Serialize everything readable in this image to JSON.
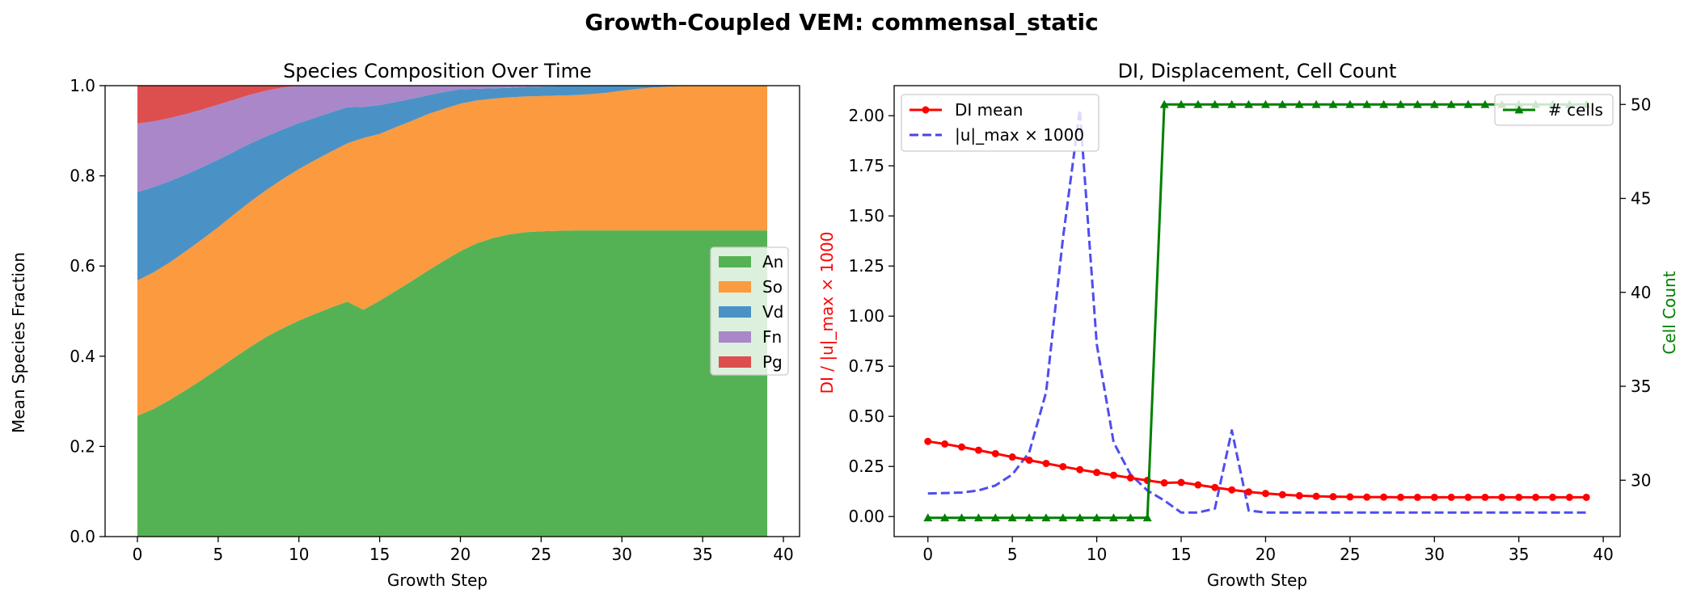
{
  "suptitle": "Growth-Coupled VEM: commensal_static",
  "chart_data": [
    {
      "type": "area",
      "title": "Species Composition Over Time",
      "xlabel": "Growth Step",
      "ylabel": "Mean Species Fraction",
      "xlim": [
        -2.0,
        41.0
      ],
      "ylim": [
        0,
        1
      ],
      "xticks": [
        0,
        5,
        10,
        15,
        20,
        25,
        30,
        35,
        40
      ],
      "yticks": [
        "0.0",
        "0.2",
        "0.4",
        "0.6",
        "0.8",
        "1.0"
      ],
      "legend_position": "center-right",
      "stacked": true,
      "x": [
        0,
        1,
        2,
        3,
        4,
        5,
        6,
        7,
        8,
        9,
        10,
        11,
        12,
        13,
        14,
        15,
        16,
        17,
        18,
        19,
        20,
        21,
        22,
        23,
        24,
        25,
        26,
        27,
        28,
        29,
        30,
        31,
        32,
        33,
        34,
        35,
        36,
        37,
        38,
        39
      ],
      "series": [
        {
          "name": "An",
          "color": "#55b254",
          "values": [
            0.268,
            0.283,
            0.303,
            0.325,
            0.348,
            0.372,
            0.397,
            0.421,
            0.443,
            0.462,
            0.479,
            0.494,
            0.508,
            0.521,
            0.503,
            0.523,
            0.545,
            0.567,
            0.59,
            0.612,
            0.633,
            0.65,
            0.662,
            0.67,
            0.675,
            0.677,
            0.678,
            0.679,
            0.679,
            0.679,
            0.679,
            0.679,
            0.679,
            0.679,
            0.679,
            0.679,
            0.679,
            0.679,
            0.679,
            0.679
          ]
        },
        {
          "name": "So",
          "color": "#fb9a3f",
          "values": [
            0.3,
            0.303,
            0.305,
            0.308,
            0.311,
            0.314,
            0.318,
            0.322,
            0.326,
            0.331,
            0.336,
            0.341,
            0.346,
            0.351,
            0.381,
            0.37,
            0.363,
            0.355,
            0.347,
            0.337,
            0.327,
            0.317,
            0.309,
            0.304,
            0.301,
            0.3,
            0.3,
            0.3,
            0.302,
            0.305,
            0.31,
            0.314,
            0.317,
            0.319,
            0.32,
            0.321,
            0.321,
            0.321,
            0.321,
            0.321
          ]
        },
        {
          "name": "Vd",
          "color": "#4a92c6",
          "values": [
            0.196,
            0.189,
            0.18,
            0.17,
            0.16,
            0.15,
            0.139,
            0.129,
            0.119,
            0.11,
            0.102,
            0.094,
            0.087,
            0.08,
            0.069,
            0.064,
            0.056,
            0.049,
            0.042,
            0.037,
            0.032,
            0.026,
            0.023,
            0.021,
            0.021,
            0.021,
            0.021,
            0.021,
            0.019,
            0.016,
            0.011,
            0.007,
            0.004,
            0.002,
            0.001,
            0.0,
            0.0,
            0.0,
            0.0,
            0.0
          ]
        },
        {
          "name": "Fn",
          "color": "#a987c8",
          "values": [
            0.152,
            0.146,
            0.14,
            0.134,
            0.128,
            0.122,
            0.115,
            0.108,
            0.101,
            0.093,
            0.083,
            0.072,
            0.059,
            0.048,
            0.047,
            0.043,
            0.036,
            0.029,
            0.021,
            0.014,
            0.008,
            0.007,
            0.006,
            0.005,
            0.003,
            0.002,
            0.001,
            0.0,
            0.0,
            0.0,
            0.0,
            0.0,
            0.0,
            0.0,
            0.0,
            0.0,
            0.0,
            0.0,
            0.0,
            0.0
          ]
        },
        {
          "name": "Pg",
          "color": "#dd4e4f",
          "values": [
            0.084,
            0.079,
            0.072,
            0.063,
            0.053,
            0.042,
            0.031,
            0.02,
            0.011,
            0.004,
            0.0,
            0.0,
            0.0,
            0.0,
            0.0,
            0.0,
            0.0,
            0.0,
            0.0,
            0.0,
            0.0,
            0.0,
            0.0,
            0.0,
            0.0,
            0.0,
            0.0,
            0.0,
            0.0,
            0.0,
            0.0,
            0.0,
            0.0,
            0.0,
            0.0,
            0.0,
            0.0,
            0.0,
            0.0,
            0.0
          ]
        }
      ]
    },
    {
      "type": "line",
      "title": "DI, Displacement, Cell Count",
      "xlabel": "Growth Step",
      "ylabel": "DI / |u|_max × 1000",
      "ylabel_color": "#ff0000",
      "y2label": "Cell Count",
      "y2label_color": "#008000",
      "xlim": [
        -2.0,
        41.0
      ],
      "ylim": [
        -0.1,
        2.15
      ],
      "y2lim": [
        27,
        51
      ],
      "xticks": [
        0,
        5,
        10,
        15,
        20,
        25,
        30,
        35,
        40
      ],
      "yticks": [
        "0.00",
        "0.25",
        "0.50",
        "0.75",
        "1.00",
        "1.25",
        "1.50",
        "1.75",
        "2.00"
      ],
      "y2ticks": [
        "30",
        "35",
        "40",
        "45",
        "50"
      ],
      "legend_left_position": "upper-left",
      "legend_right_position": "upper-right",
      "x": [
        0,
        1,
        2,
        3,
        4,
        5,
        6,
        7,
        8,
        9,
        10,
        11,
        12,
        13,
        14,
        15,
        16,
        17,
        18,
        19,
        20,
        21,
        22,
        23,
        24,
        25,
        26,
        27,
        28,
        29,
        30,
        31,
        32,
        33,
        34,
        35,
        36,
        37,
        38,
        39
      ],
      "series": [
        {
          "name": "DI mean",
          "axis": "left",
          "color": "#ff0000",
          "style": "solid",
          "marker": "circle",
          "values": [
            0.375,
            0.362,
            0.347,
            0.331,
            0.314,
            0.297,
            0.281,
            0.265,
            0.249,
            0.234,
            0.22,
            0.206,
            0.193,
            0.18,
            0.168,
            0.17,
            0.158,
            0.145,
            0.133,
            0.123,
            0.115,
            0.109,
            0.104,
            0.101,
            0.099,
            0.098,
            0.097,
            0.097,
            0.096,
            0.096,
            0.096,
            0.096,
            0.096,
            0.096,
            0.096,
            0.096,
            0.096,
            0.096,
            0.096,
            0.096
          ]
        },
        {
          "name": "|u|_max × 1000",
          "axis": "left",
          "color": "#4444ee",
          "style": "dashed",
          "marker": "none",
          "values": [
            0.115,
            0.117,
            0.12,
            0.13,
            0.155,
            0.21,
            0.32,
            0.62,
            1.39,
            2.03,
            0.86,
            0.37,
            0.21,
            0.13,
            0.08,
            0.02,
            0.02,
            0.04,
            0.43,
            0.03,
            0.02,
            0.02,
            0.02,
            0.02,
            0.02,
            0.02,
            0.02,
            0.02,
            0.02,
            0.02,
            0.02,
            0.02,
            0.02,
            0.02,
            0.02,
            0.02,
            0.02,
            0.02,
            0.02,
            0.02
          ]
        },
        {
          "name": "# cells",
          "axis": "right",
          "color": "#008000",
          "style": "solid",
          "marker": "triangle",
          "values": [
            28,
            28,
            28,
            28,
            28,
            28,
            28,
            28,
            28,
            28,
            28,
            28,
            28,
            28,
            50,
            50,
            50,
            50,
            50,
            50,
            50,
            50,
            50,
            50,
            50,
            50,
            50,
            50,
            50,
            50,
            50,
            50,
            50,
            50,
            50,
            50,
            50,
            50,
            50,
            50
          ]
        }
      ]
    }
  ]
}
